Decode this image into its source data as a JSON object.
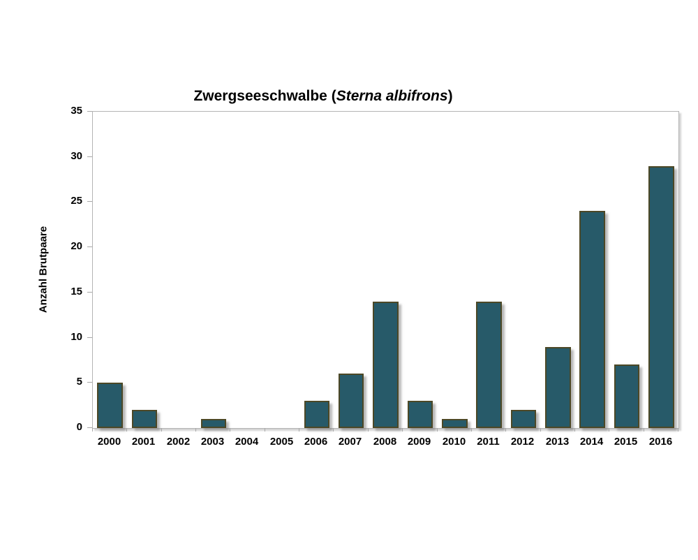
{
  "chart_data": {
    "type": "bar",
    "title": "Zwergseeschwalbe (Sterna albifrons)",
    "title_parts": {
      "prefix": "Zwergseeschwalbe (",
      "species": "Sterna albifrons",
      "suffix": ")"
    },
    "ylabel": "Anzahl Brutpaare",
    "xlabel": "",
    "categories": [
      "2000",
      "2001",
      "2002",
      "2003",
      "2004",
      "2005",
      "2006",
      "2007",
      "2008",
      "2009",
      "2010",
      "2011",
      "2012",
      "2013",
      "2014",
      "2015",
      "2016"
    ],
    "values": [
      5,
      2,
      0,
      1,
      0,
      0,
      3,
      6,
      14,
      3,
      1,
      14,
      2,
      9,
      24,
      7,
      29
    ],
    "ylim": [
      0,
      35
    ],
    "yticks": [
      0,
      5,
      10,
      15,
      20,
      25,
      30,
      35
    ],
    "grid": false,
    "legend": null,
    "colors": {
      "bar_fill": "#275a69",
      "bar_border": "#4c4826",
      "axis_line": "#b4b4b4",
      "text": "#000000",
      "background": "#ffffff"
    }
  }
}
